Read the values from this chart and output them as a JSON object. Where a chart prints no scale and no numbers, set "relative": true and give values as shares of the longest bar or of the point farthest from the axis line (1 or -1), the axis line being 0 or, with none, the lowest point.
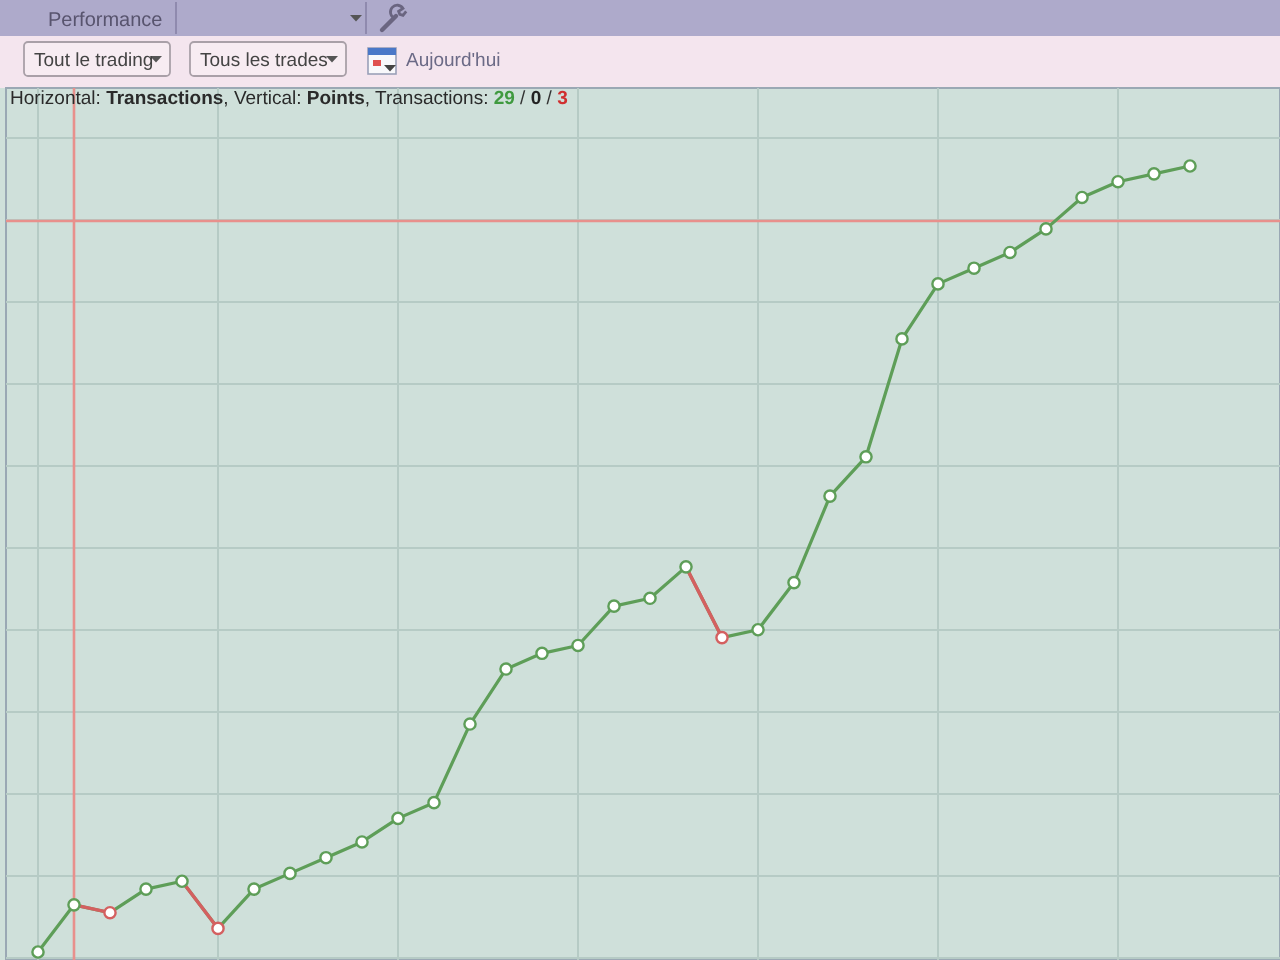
{
  "chart_data": {
    "type": "line",
    "relative": true,
    "title": "Horizontal: Transactions, Vertical: Points, Transactions: 29 / 0 / 3",
    "annotations": [
      "Performance",
      "Tout le trading",
      "Tous les trades",
      "Aujourd'hui"
    ],
    "categories": [
      null,
      null,
      null,
      null,
      null,
      null,
      null,
      null,
      null,
      null,
      null,
      null,
      null,
      null,
      null,
      null,
      null,
      null,
      null,
      null,
      null,
      null,
      null,
      null,
      null,
      null,
      null,
      null,
      null,
      null,
      null,
      null,
      null
    ],
    "series": [
      {
        "color": "#5e9e58",
        "values": [
          0,
          0.06,
          0.05,
          0.08,
          0.09,
          0.03,
          0.08,
          0.1,
          0.12,
          0.14,
          0.17,
          0.19,
          0.29,
          0.36,
          0.38,
          0.39,
          0.44,
          0.45,
          0.49,
          0.4,
          0.41,
          0.47,
          0.58,
          0.63,
          0.78,
          0.85,
          0.87,
          0.89,
          0.92,
          0.96,
          0.98,
          0.99,
          1
        ],
        "colors": [
          "#5e9e58",
          "#5e9e58",
          "#d46060",
          "#5e9e58",
          "#5e9e58",
          "#d46060",
          "#5e9e58",
          "#5e9e58",
          "#5e9e58",
          "#5e9e58",
          "#5e9e58",
          "#5e9e58",
          "#5e9e58",
          "#5e9e58",
          "#5e9e58",
          "#5e9e58",
          "#5e9e58",
          "#5e9e58",
          "#5e9e58",
          "#d46060",
          "#5e9e58",
          "#5e9e58",
          "#5e9e58",
          "#5e9e58",
          "#5e9e58",
          "#5e9e58",
          "#5e9e58",
          "#5e9e58",
          "#5e9e58",
          "#5e9e58",
          "#5e9e58",
          "#5e9e58",
          "#5e9e58"
        ]
      }
    ],
    "ref_lines": [
      {
        "axis": "y",
        "value": 0.93,
        "color": "#e8908c"
      }
    ],
    "grid": true,
    "marker": "circle"
  }
}
